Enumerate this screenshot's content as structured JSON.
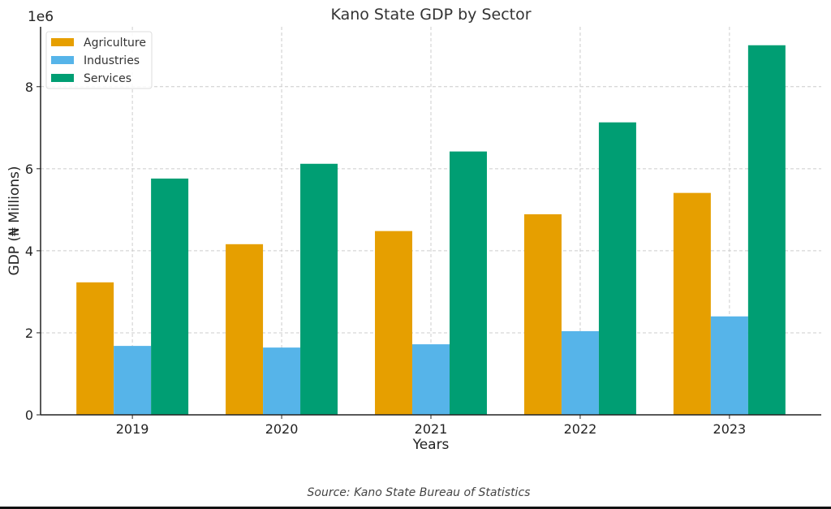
{
  "chart_data": {
    "type": "bar",
    "title": "Kano State GDP by Sector",
    "xlabel": "Years",
    "ylabel": "GDP (₦ Millions)",
    "y_offset_label": "1e6",
    "categories": [
      "2019",
      "2020",
      "2021",
      "2022",
      "2023"
    ],
    "series": [
      {
        "name": "Agriculture",
        "color": "#E69F00",
        "values": [
          3230000,
          4160000,
          4480000,
          4890000,
          5410000
        ]
      },
      {
        "name": "Industries",
        "color": "#56B4E9",
        "values": [
          1680000,
          1640000,
          1720000,
          2040000,
          2400000
        ]
      },
      {
        "name": "Services",
        "color": "#009E73",
        "values": [
          5760000,
          6120000,
          6420000,
          7130000,
          9010000
        ]
      }
    ],
    "ylim": [
      0,
      9460000
    ],
    "yticks": [
      0,
      2000000,
      4000000,
      6000000,
      8000000
    ],
    "ytick_labels": [
      "0",
      "2",
      "4",
      "6",
      "8"
    ],
    "grid": true,
    "legend_position": "top-left",
    "caption": "Source: Kano State Bureau of Statistics"
  }
}
